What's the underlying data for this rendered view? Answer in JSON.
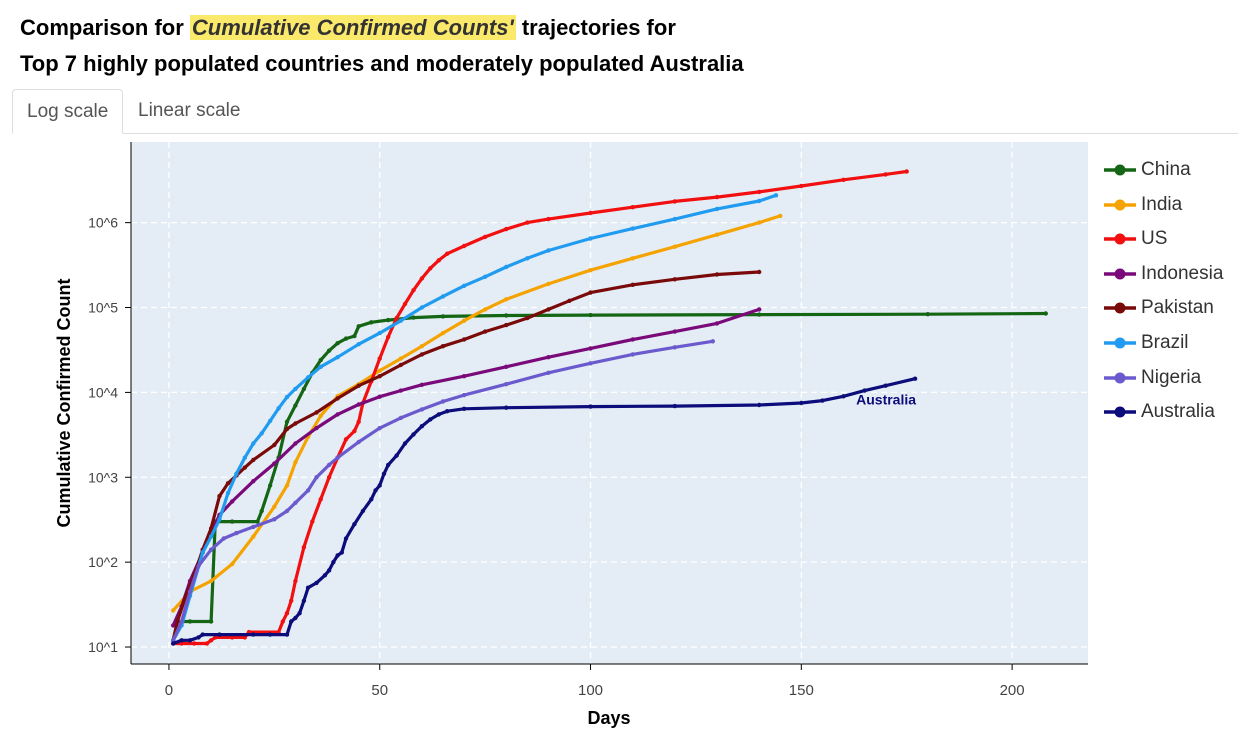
{
  "header": {
    "title_prefix": "Comparison for ",
    "title_highlight": "Cumulative Confirmed Counts'",
    "title_suffix": " trajectories for",
    "title_line2": "Top 7 highly populated countries and moderately populated Australia"
  },
  "tabs": [
    {
      "label": "Log scale",
      "active": true
    },
    {
      "label": "Linear scale",
      "active": false
    }
  ],
  "colors": {
    "plot_bg": "#e4edf6",
    "grid": "#ffffff",
    "highlight": "#fbe96b"
  },
  "chart_data": {
    "type": "line",
    "xlabel": "Days",
    "ylabel": "Cumulative Confirmed Count",
    "xlim": [
      -9,
      218
    ],
    "ylim_log10": [
      0.8,
      6.95
    ],
    "y_scale": "log",
    "grid": true,
    "legend_position": "right",
    "x_ticks": [
      0,
      50,
      100,
      150,
      200
    ],
    "y_ticks": [
      {
        "value": 10,
        "label": "10^1"
      },
      {
        "value": 100,
        "label": "10^2"
      },
      {
        "value": 1000,
        "label": "10^3"
      },
      {
        "value": 10000,
        "label": "10^4"
      },
      {
        "value": 100000,
        "label": "10^5"
      },
      {
        "value": 1000000,
        "label": "10^6"
      }
    ],
    "annotation": {
      "text": "Australia",
      "x": 163,
      "y": 8200,
      "color": "#0c0c7a"
    },
    "series": [
      {
        "name": "China",
        "color": "#146614",
        "points": [
          [
            1,
            12
          ],
          [
            2,
            20
          ],
          [
            5,
            20
          ],
          [
            10,
            20
          ],
          [
            11,
            300
          ],
          [
            15,
            300
          ],
          [
            21,
            300
          ],
          [
            22,
            400
          ],
          [
            24,
            800
          ],
          [
            26,
            1700
          ],
          [
            28,
            4500
          ],
          [
            30,
            7000
          ],
          [
            32,
            11000
          ],
          [
            34,
            17000
          ],
          [
            36,
            24000
          ],
          [
            38,
            31000
          ],
          [
            40,
            38000
          ],
          [
            42,
            43000
          ],
          [
            44,
            46000
          ],
          [
            45,
            60000
          ],
          [
            48,
            67000
          ],
          [
            52,
            71000
          ],
          [
            58,
            76000
          ],
          [
            65,
            78500
          ],
          [
            80,
            80500
          ],
          [
            100,
            81500
          ],
          [
            140,
            82500
          ],
          [
            180,
            83500
          ],
          [
            208,
            85000
          ]
        ]
      },
      {
        "name": "India",
        "color": "#f5a300",
        "points": [
          [
            1,
            27
          ],
          [
            5,
            45
          ],
          [
            10,
            60
          ],
          [
            15,
            95
          ],
          [
            20,
            200
          ],
          [
            25,
            450
          ],
          [
            28,
            800
          ],
          [
            30,
            1500
          ],
          [
            33,
            3000
          ],
          [
            36,
            5300
          ],
          [
            40,
            9000
          ],
          [
            45,
            12500
          ],
          [
            50,
            18000
          ],
          [
            55,
            25000
          ],
          [
            60,
            35000
          ],
          [
            65,
            50000
          ],
          [
            70,
            70000
          ],
          [
            75,
            95000
          ],
          [
            80,
            125000
          ],
          [
            90,
            190000
          ],
          [
            100,
            275000
          ],
          [
            110,
            380000
          ],
          [
            120,
            520000
          ],
          [
            130,
            720000
          ],
          [
            140,
            1000000
          ],
          [
            145,
            1200000
          ]
        ]
      },
      {
        "name": "US",
        "color": "#f20f0f",
        "points": [
          [
            1,
            11
          ],
          [
            3,
            11
          ],
          [
            6,
            11
          ],
          [
            9,
            11
          ],
          [
            10,
            12
          ],
          [
            11,
            13
          ],
          [
            15,
            13
          ],
          [
            18,
            13
          ],
          [
            19,
            15
          ],
          [
            26,
            15
          ],
          [
            27,
            20
          ],
          [
            28,
            25
          ],
          [
            29,
            35
          ],
          [
            30,
            60
          ],
          [
            32,
            150
          ],
          [
            34,
            300
          ],
          [
            36,
            550
          ],
          [
            38,
            1000
          ],
          [
            40,
            1700
          ],
          [
            42,
            2800
          ],
          [
            44,
            3500
          ],
          [
            45,
            4500
          ],
          [
            46,
            7500
          ],
          [
            48,
            13500
          ],
          [
            50,
            25000
          ],
          [
            52,
            45000
          ],
          [
            54,
            75000
          ],
          [
            56,
            110000
          ],
          [
            58,
            160000
          ],
          [
            60,
            220000
          ],
          [
            62,
            290000
          ],
          [
            64,
            360000
          ],
          [
            66,
            430000
          ],
          [
            70,
            530000
          ],
          [
            75,
            680000
          ],
          [
            80,
            840000
          ],
          [
            85,
            1000000
          ],
          [
            90,
            1100000
          ],
          [
            100,
            1300000
          ],
          [
            110,
            1520000
          ],
          [
            120,
            1780000
          ],
          [
            130,
            2000000
          ],
          [
            140,
            2300000
          ],
          [
            150,
            2700000
          ],
          [
            160,
            3200000
          ],
          [
            170,
            3700000
          ],
          [
            175,
            4000000
          ]
        ]
      },
      {
        "name": "Indonesia",
        "color": "#7a0a7a",
        "points": [
          [
            1,
            18
          ],
          [
            3,
            30
          ],
          [
            5,
            60
          ],
          [
            8,
            130
          ],
          [
            10,
            220
          ],
          [
            12,
            360
          ],
          [
            15,
            520
          ],
          [
            20,
            900
          ],
          [
            25,
            1450
          ],
          [
            30,
            2500
          ],
          [
            35,
            3800
          ],
          [
            40,
            5500
          ],
          [
            45,
            7200
          ],
          [
            50,
            8900
          ],
          [
            55,
            10500
          ],
          [
            60,
            12300
          ],
          [
            70,
            15500
          ],
          [
            80,
            20000
          ],
          [
            90,
            26000
          ],
          [
            100,
            33000
          ],
          [
            110,
            42000
          ],
          [
            120,
            52000
          ],
          [
            130,
            65000
          ],
          [
            140,
            95000
          ]
        ]
      },
      {
        "name": "Pakistan",
        "color": "#7a0a0a",
        "points": [
          [
            1,
            12
          ],
          [
            2,
            20
          ],
          [
            4,
            40
          ],
          [
            6,
            70
          ],
          [
            8,
            140
          ],
          [
            10,
            250
          ],
          [
            12,
            600
          ],
          [
            14,
            850
          ],
          [
            16,
            1050
          ],
          [
            18,
            1300
          ],
          [
            20,
            1600
          ],
          [
            25,
            2400
          ],
          [
            28,
            3700
          ],
          [
            30,
            4300
          ],
          [
            35,
            5800
          ],
          [
            40,
            8500
          ],
          [
            45,
            12000
          ],
          [
            50,
            15500
          ],
          [
            55,
            21000
          ],
          [
            60,
            28000
          ],
          [
            65,
            35000
          ],
          [
            70,
            42000
          ],
          [
            75,
            52000
          ],
          [
            80,
            62000
          ],
          [
            85,
            75000
          ],
          [
            90,
            95000
          ],
          [
            95,
            120000
          ],
          [
            100,
            150000
          ],
          [
            110,
            185000
          ],
          [
            120,
            215000
          ],
          [
            130,
            245000
          ],
          [
            140,
            262000
          ]
        ]
      },
      {
        "name": "Brazil",
        "color": "#209bf0",
        "points": [
          [
            1,
            12
          ],
          [
            3,
            18
          ],
          [
            5,
            40
          ],
          [
            8,
            130
          ],
          [
            10,
            200
          ],
          [
            12,
            320
          ],
          [
            14,
            650
          ],
          [
            16,
            1100
          ],
          [
            18,
            1700
          ],
          [
            20,
            2500
          ],
          [
            22,
            3300
          ],
          [
            24,
            4600
          ],
          [
            26,
            6500
          ],
          [
            28,
            8800
          ],
          [
            30,
            11000
          ],
          [
            33,
            15000
          ],
          [
            36,
            20000
          ],
          [
            40,
            26000
          ],
          [
            45,
            37000
          ],
          [
            50,
            50000
          ],
          [
            55,
            70000
          ],
          [
            60,
            100000
          ],
          [
            65,
            135000
          ],
          [
            70,
            180000
          ],
          [
            75,
            230000
          ],
          [
            80,
            300000
          ],
          [
            85,
            380000
          ],
          [
            90,
            470000
          ],
          [
            100,
            650000
          ],
          [
            110,
            850000
          ],
          [
            120,
            1100000
          ],
          [
            130,
            1450000
          ],
          [
            140,
            1800000
          ],
          [
            144,
            2100000
          ]
        ]
      },
      {
        "name": "Nigeria",
        "color": "#6a5acd",
        "points": [
          [
            1,
            12
          ],
          [
            3,
            20
          ],
          [
            5,
            45
          ],
          [
            7,
            90
          ],
          [
            10,
            140
          ],
          [
            13,
            190
          ],
          [
            16,
            220
          ],
          [
            20,
            260
          ],
          [
            25,
            320
          ],
          [
            28,
            400
          ],
          [
            30,
            500
          ],
          [
            33,
            700
          ],
          [
            35,
            1000
          ],
          [
            38,
            1400
          ],
          [
            40,
            1700
          ],
          [
            45,
            2600
          ],
          [
            50,
            3800
          ],
          [
            55,
            5000
          ],
          [
            60,
            6300
          ],
          [
            65,
            7800
          ],
          [
            70,
            9300
          ],
          [
            80,
            12500
          ],
          [
            90,
            17000
          ],
          [
            100,
            22000
          ],
          [
            110,
            28000
          ],
          [
            120,
            34000
          ],
          [
            129,
            40000
          ]
        ]
      },
      {
        "name": "Australia",
        "color": "#0c0c7a",
        "points": [
          [
            1,
            11
          ],
          [
            3,
            12
          ],
          [
            5,
            12
          ],
          [
            7,
            13
          ],
          [
            8,
            14
          ],
          [
            12,
            14
          ],
          [
            20,
            14
          ],
          [
            24,
            14
          ],
          [
            28,
            14
          ],
          [
            29,
            20
          ],
          [
            30,
            22
          ],
          [
            31,
            25
          ],
          [
            32,
            35
          ],
          [
            33,
            50
          ],
          [
            35,
            57
          ],
          [
            37,
            70
          ],
          [
            38,
            80
          ],
          [
            39,
            100
          ],
          [
            40,
            120
          ],
          [
            41,
            130
          ],
          [
            42,
            190
          ],
          [
            44,
            280
          ],
          [
            46,
            400
          ],
          [
            48,
            550
          ],
          [
            49,
            700
          ],
          [
            50,
            800
          ],
          [
            51,
            1100
          ],
          [
            52,
            1400
          ],
          [
            54,
            1800
          ],
          [
            56,
            2500
          ],
          [
            58,
            3200
          ],
          [
            60,
            4000
          ],
          [
            62,
            4800
          ],
          [
            64,
            5500
          ],
          [
            66,
            6000
          ],
          [
            70,
            6400
          ],
          [
            80,
            6600
          ],
          [
            100,
            6800
          ],
          [
            120,
            6900
          ],
          [
            140,
            7100
          ],
          [
            150,
            7500
          ],
          [
            155,
            8000
          ],
          [
            160,
            9000
          ],
          [
            165,
            10500
          ],
          [
            170,
            12000
          ],
          [
            177,
            14500
          ]
        ]
      }
    ]
  }
}
